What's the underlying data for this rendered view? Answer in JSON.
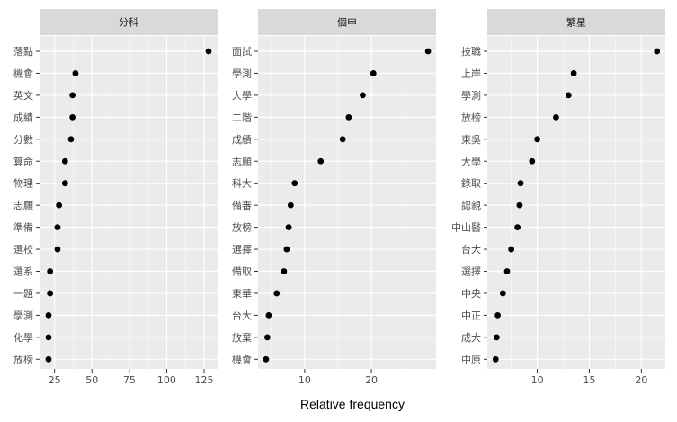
{
  "chart_data": {
    "type": "scatter",
    "xlabel": "Relative frequency",
    "grid": true,
    "colors": {
      "panel_bg": "#ebebeb",
      "strip_bg": "#d9d9d9",
      "grid": "#ffffff",
      "point": "#000000"
    },
    "panels": [
      {
        "title": "分科",
        "categories": [
          "落點",
          "機會",
          "英文",
          "成績",
          "分數",
          "算命",
          "物理",
          "志願",
          "準備",
          "選校",
          "選系",
          "一題",
          "學測",
          "化學",
          "放榜"
        ],
        "values": [
          128,
          39,
          37,
          37,
          36,
          32,
          32,
          28,
          27,
          27,
          22,
          22,
          21,
          21,
          21
        ],
        "xticks": [
          25,
          50,
          75,
          100,
          125
        ],
        "xlim": [
          15,
          134
        ]
      },
      {
        "title": "個申",
        "categories": [
          "面試",
          "學測",
          "大學",
          "二階",
          "成績",
          "志願",
          "科大",
          "備審",
          "放榜",
          "選擇",
          "備取",
          "東華",
          "台大",
          "放棄",
          "機會"
        ],
        "values": [
          28.5,
          20.3,
          18.7,
          16.6,
          15.7,
          12.4,
          8.5,
          7.9,
          7.6,
          7.3,
          6.9,
          5.8,
          4.6,
          4.4,
          4.2
        ],
        "xticks": [
          10,
          20
        ],
        "xlim": [
          3.0,
          29.7
        ]
      },
      {
        "title": "繁星",
        "categories": [
          "技職",
          "上岸",
          "學測",
          "放榜",
          "東吳",
          "大學",
          "錄取",
          "認親",
          "中山醫",
          "台大",
          "選擇",
          "中央",
          "中正",
          "成大",
          "中原"
        ],
        "values": [
          21.5,
          13.5,
          13.0,
          11.8,
          10.0,
          9.5,
          8.4,
          8.3,
          8.1,
          7.5,
          7.1,
          6.7,
          6.2,
          6.1,
          6.0
        ],
        "xticks": [
          10,
          15,
          20
        ],
        "xlim": [
          5.2,
          22.3
        ]
      }
    ]
  }
}
